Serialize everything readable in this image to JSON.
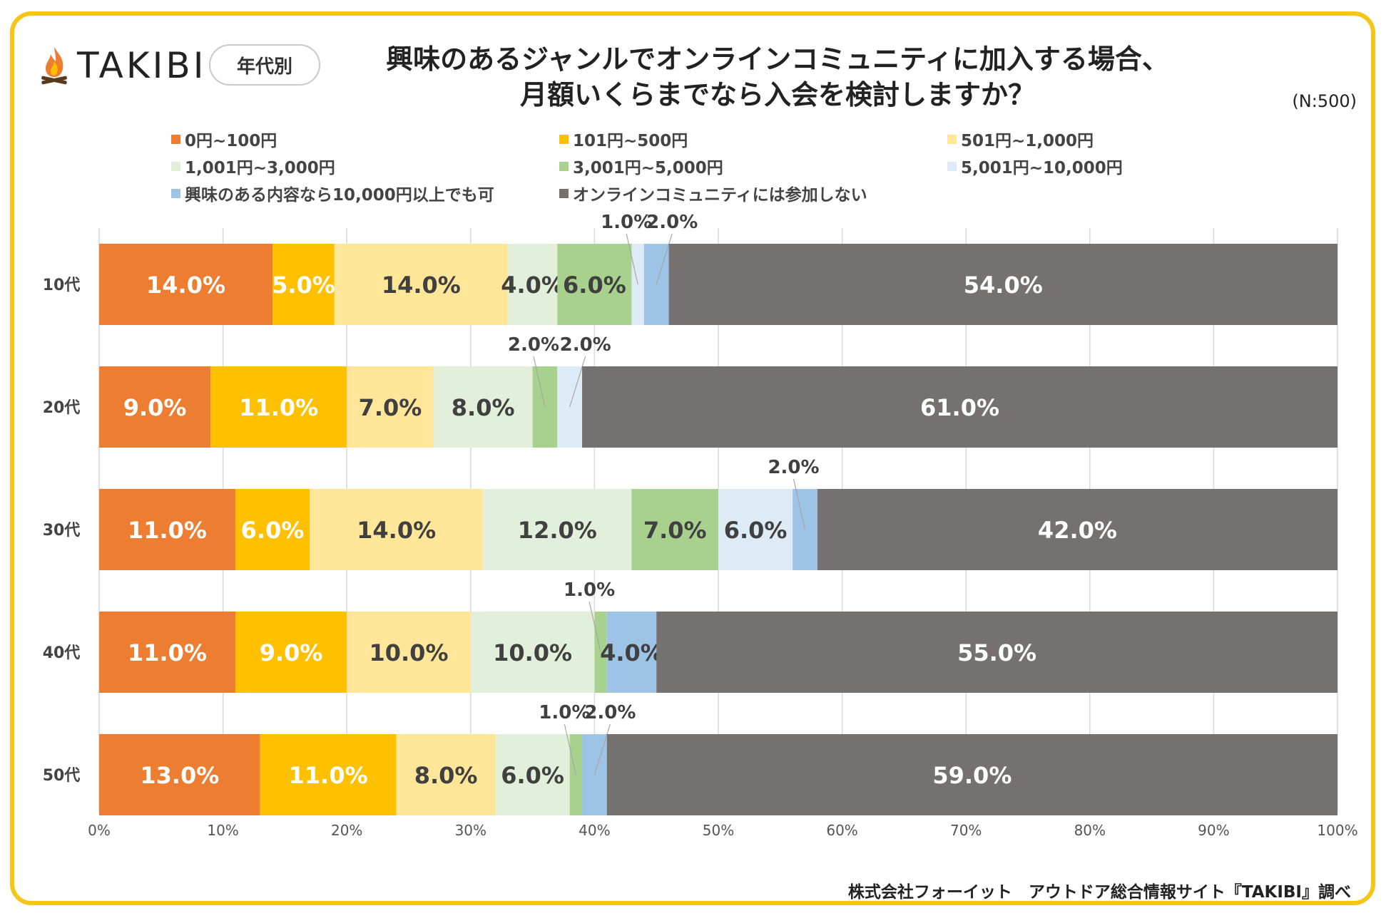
{
  "brand": {
    "name": "TAKIBI",
    "tag": "年代別"
  },
  "title_lines": [
    "興味のあるジャンルでオンラインコミュニティに加入する場合、",
    "月額いくらまでなら入会を検討しますか？"
  ],
  "sample": "(N:500)",
  "footer": "株式会社フォーイット　アウトドア総合情報サイト『TAKIBI』調べ",
  "colors": {
    "frame": "#f5c518",
    "series": [
      "#ED7D31",
      "#FFC000",
      "#FFE699",
      "#E2EFDA",
      "#A9D18E",
      "#DDEBF7",
      "#9DC3E6",
      "#767171"
    ],
    "label_on_light": "#404040",
    "label_on_dark": "#ffffff"
  },
  "chart_data": {
    "type": "bar",
    "orientation": "horizontal-stacked-100",
    "categories": [
      "10代",
      "20代",
      "30代",
      "40代",
      "50代"
    ],
    "series": [
      {
        "name": "0円~100円",
        "values": [
          14,
          9,
          11,
          11,
          13
        ]
      },
      {
        "name": "101円~500円",
        "values": [
          5,
          11,
          6,
          9,
          11
        ]
      },
      {
        "name": "501円~1,000円",
        "values": [
          14,
          7,
          14,
          10,
          8
        ]
      },
      {
        "name": "1,001円~3,000円",
        "values": [
          4,
          8,
          12,
          10,
          6
        ]
      },
      {
        "name": "3,001円~5,000円",
        "values": [
          6,
          2,
          7,
          1,
          1
        ]
      },
      {
        "name": "5,001円~10,000円",
        "values": [
          1,
          2,
          6,
          0,
          0
        ]
      },
      {
        "name": "興味のある内容なら10,000円以上でも可",
        "values": [
          2,
          0,
          2,
          4,
          2
        ]
      },
      {
        "name": "オンラインコミュニティには参加しない",
        "values": [
          54,
          61,
          42,
          55,
          59
        ]
      }
    ],
    "labels": [
      [
        "14.0%",
        "5.0%",
        "14.0%",
        "4.0%",
        "6.0%",
        "1.0%",
        "2.0%",
        "54.0%"
      ],
      [
        "9.0%",
        "11.0%",
        "7.0%",
        "8.0%",
        "2.0%",
        "2.0%",
        "",
        "61.0%"
      ],
      [
        "11.0%",
        "6.0%",
        "14.0%",
        "12.0%",
        "7.0%",
        "6.0%",
        "2.0%",
        "42.0%"
      ],
      [
        "11.0%",
        "9.0%",
        "10.0%",
        "10.0%",
        "1.0%",
        "",
        "4.0%",
        "55.0%"
      ],
      [
        "13.0%",
        "11.0%",
        "8.0%",
        "6.0%",
        "1.0%",
        "",
        "2.0%",
        "59.0%"
      ]
    ],
    "outside_labels": [
      [
        5,
        6
      ],
      [
        4,
        5
      ],
      [
        6
      ],
      [
        4
      ],
      [
        4,
        6
      ]
    ],
    "x_ticks": [
      "0%",
      "10%",
      "20%",
      "30%",
      "40%",
      "50%",
      "60%",
      "70%",
      "80%",
      "90%",
      "100%"
    ],
    "xlim": [
      0,
      100
    ],
    "grid": true,
    "legend": "top"
  }
}
